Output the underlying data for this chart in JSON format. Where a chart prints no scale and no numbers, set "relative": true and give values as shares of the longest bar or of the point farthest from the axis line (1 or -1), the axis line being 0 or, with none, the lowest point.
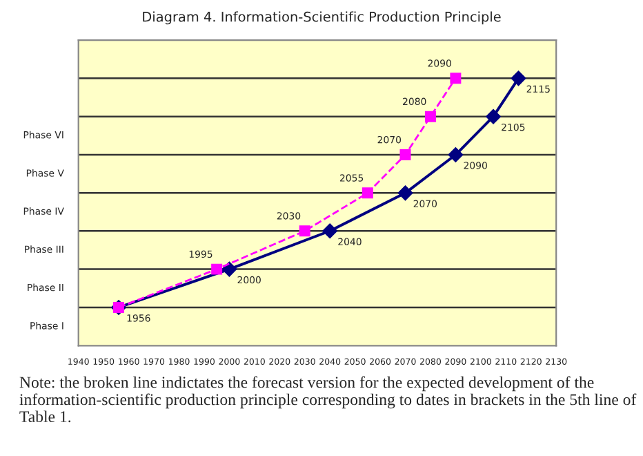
{
  "chart_data": {
    "type": "line",
    "title": "Diagram 4. Information-Scientific Production Principle",
    "relative": true,
    "series": [
      {
        "color": "#000080",
        "marker": "diamond",
        "line_style": "solid",
        "x": [
          1956,
          2000,
          2040,
          2070,
          2090,
          2105,
          2115
        ],
        "values": [
          0.143,
          0.286,
          0.429,
          0.571,
          0.714,
          0.857,
          1
        ]
      },
      {
        "color": "#ff00ff",
        "marker": "square",
        "line_style": "dashed",
        "x": [
          1956,
          1995,
          2030,
          2055,
          2070,
          2080,
          2090
        ],
        "values": [
          0.143,
          0.286,
          0.429,
          0.571,
          0.714,
          0.857,
          1
        ]
      }
    ],
    "xlim": [
      1940,
      2130
    ],
    "xticks": [
      1940,
      1950,
      1960,
      1970,
      1980,
      1990,
      2000,
      2010,
      2020,
      2030,
      2040,
      2050,
      2060,
      2070,
      2080,
      2090,
      2100,
      2110,
      2120,
      2130
    ],
    "ref_lines": [
      {
        "axis": "y",
        "value": 0.143,
        "color": "#333333"
      },
      {
        "axis": "y",
        "value": 0.286,
        "color": "#333333"
      },
      {
        "axis": "y",
        "value": 0.429,
        "color": "#333333"
      },
      {
        "axis": "y",
        "value": 0.571,
        "color": "#333333"
      },
      {
        "axis": "y",
        "value": 0.714,
        "color": "#333333"
      },
      {
        "axis": "y",
        "value": 0.857,
        "color": "#333333"
      },
      {
        "axis": "y",
        "value": 1,
        "color": "#333333"
      }
    ],
    "legend": false,
    "annotations": [
      "Phase I",
      "Phase II",
      "Phase III",
      "Phase IV",
      "Phase V",
      "Phase VI",
      {
        "text": "1956",
        "x": 1956,
        "y": 0.143
      },
      {
        "text": "2000",
        "x": 2000,
        "y": 0.286
      },
      {
        "text": "2040",
        "x": 2040,
        "y": 0.429
      },
      {
        "text": "2070",
        "x": 2070,
        "y": 0.571
      },
      {
        "text": "2090",
        "x": 2090,
        "y": 0.714
      },
      {
        "text": "2105",
        "x": 2105,
        "y": 0.857
      },
      {
        "text": "2115",
        "x": 2115,
        "y": 1
      },
      {
        "text": "1995",
        "x": 1995,
        "y": 0.286
      },
      {
        "text": "2030",
        "x": 2030,
        "y": 0.429
      },
      {
        "text": "2055",
        "x": 2055,
        "y": 0.571
      },
      {
        "text": "2070",
        "x": 2070,
        "y": 0.714
      },
      {
        "text": "2080",
        "x": 2080,
        "y": 0.857
      },
      {
        "text": "2090",
        "x": 2090,
        "y": 1
      },
      "Note: the broken line indictates the forecast version for the expected development of the information-scientific production principle corresponding to dates in brackets in the 5th line of Table 1."
    ]
  }
}
